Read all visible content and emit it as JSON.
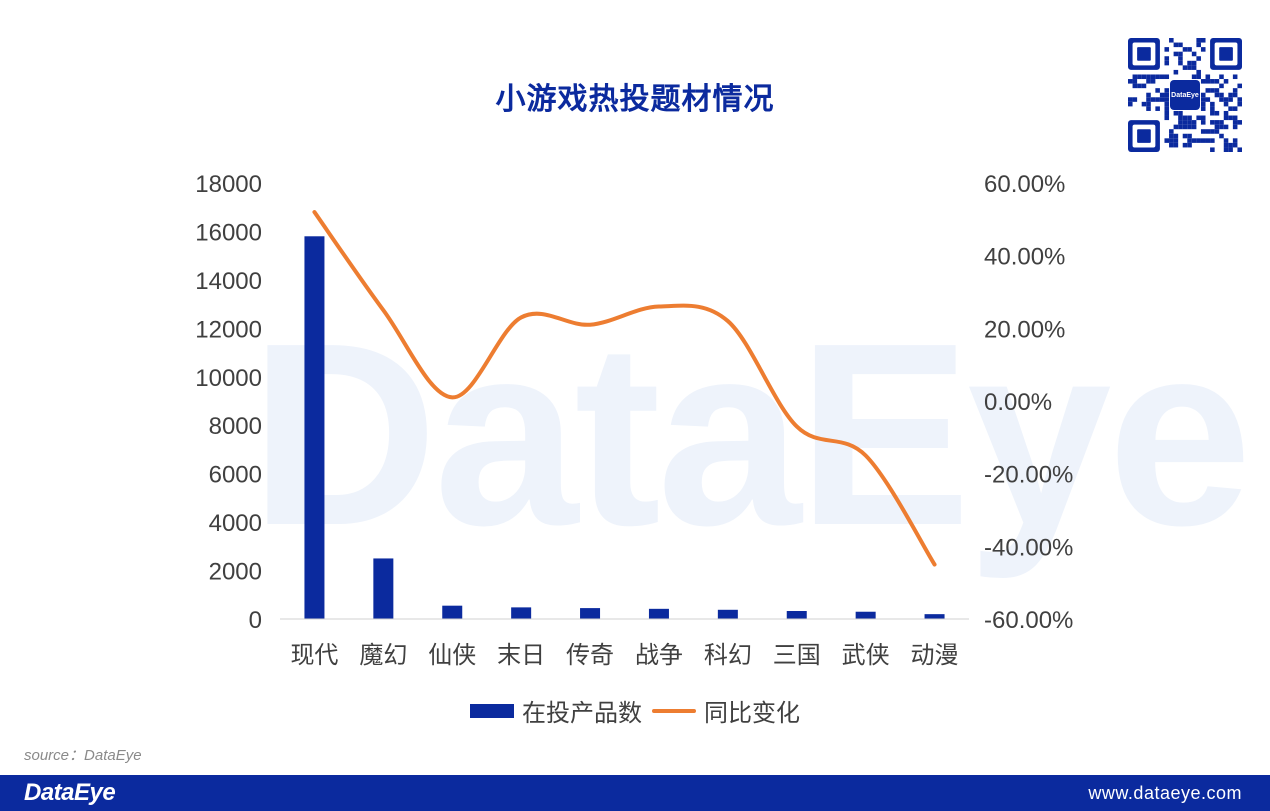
{
  "title": "小游戏热投题材情况",
  "source": "source：DataEye",
  "footer": {
    "logo": "DataEye",
    "url": "www.dataeye.com"
  },
  "watermark": "DataEye",
  "qr": {
    "icon": "qr-code-icon",
    "center_text": "DataEye"
  },
  "colors": {
    "brand": "#0b2a9e",
    "bar": "#0b2a9e",
    "line": "#ed7d31",
    "title": "#0b2a9e"
  },
  "legend": {
    "bar_label": "在投产品数",
    "line_label": "同比变化"
  },
  "chart_data": {
    "type": "bar",
    "title": "小游戏热投题材情况",
    "categories": [
      "现代",
      "魔幻",
      "仙侠",
      "末日",
      "传奇",
      "战争",
      "科幻",
      "三国",
      "武侠",
      "动漫"
    ],
    "series": [
      {
        "name": "在投产品数",
        "type": "bar",
        "axis": "left",
        "values": [
          15800,
          2500,
          550,
          480,
          450,
          420,
          380,
          330,
          300,
          200
        ]
      },
      {
        "name": "同比变化",
        "type": "line",
        "axis": "right",
        "values": [
          0.52,
          0.25,
          0.01,
          0.23,
          0.21,
          0.26,
          0.22,
          -0.07,
          -0.15,
          -0.45
        ]
      }
    ],
    "y_left": {
      "lim": [
        0,
        18000
      ],
      "ticks": [
        0,
        2000,
        4000,
        6000,
        8000,
        10000,
        12000,
        14000,
        16000,
        18000
      ],
      "tick_labels": [
        "0",
        "2000",
        "4000",
        "6000",
        "8000",
        "10000",
        "12000",
        "14000",
        "16000",
        "18000"
      ]
    },
    "y_right": {
      "lim": [
        -0.6,
        0.6
      ],
      "ticks": [
        -0.6,
        -0.4,
        -0.2,
        0,
        0.2,
        0.4,
        0.6
      ],
      "tick_labels": [
        "-60.00%",
        "-40.00%",
        "-20.00%",
        "0.00%",
        "20.00%",
        "40.00%",
        "60.00%"
      ]
    },
    "grid": false,
    "legend_position": "bottom"
  }
}
